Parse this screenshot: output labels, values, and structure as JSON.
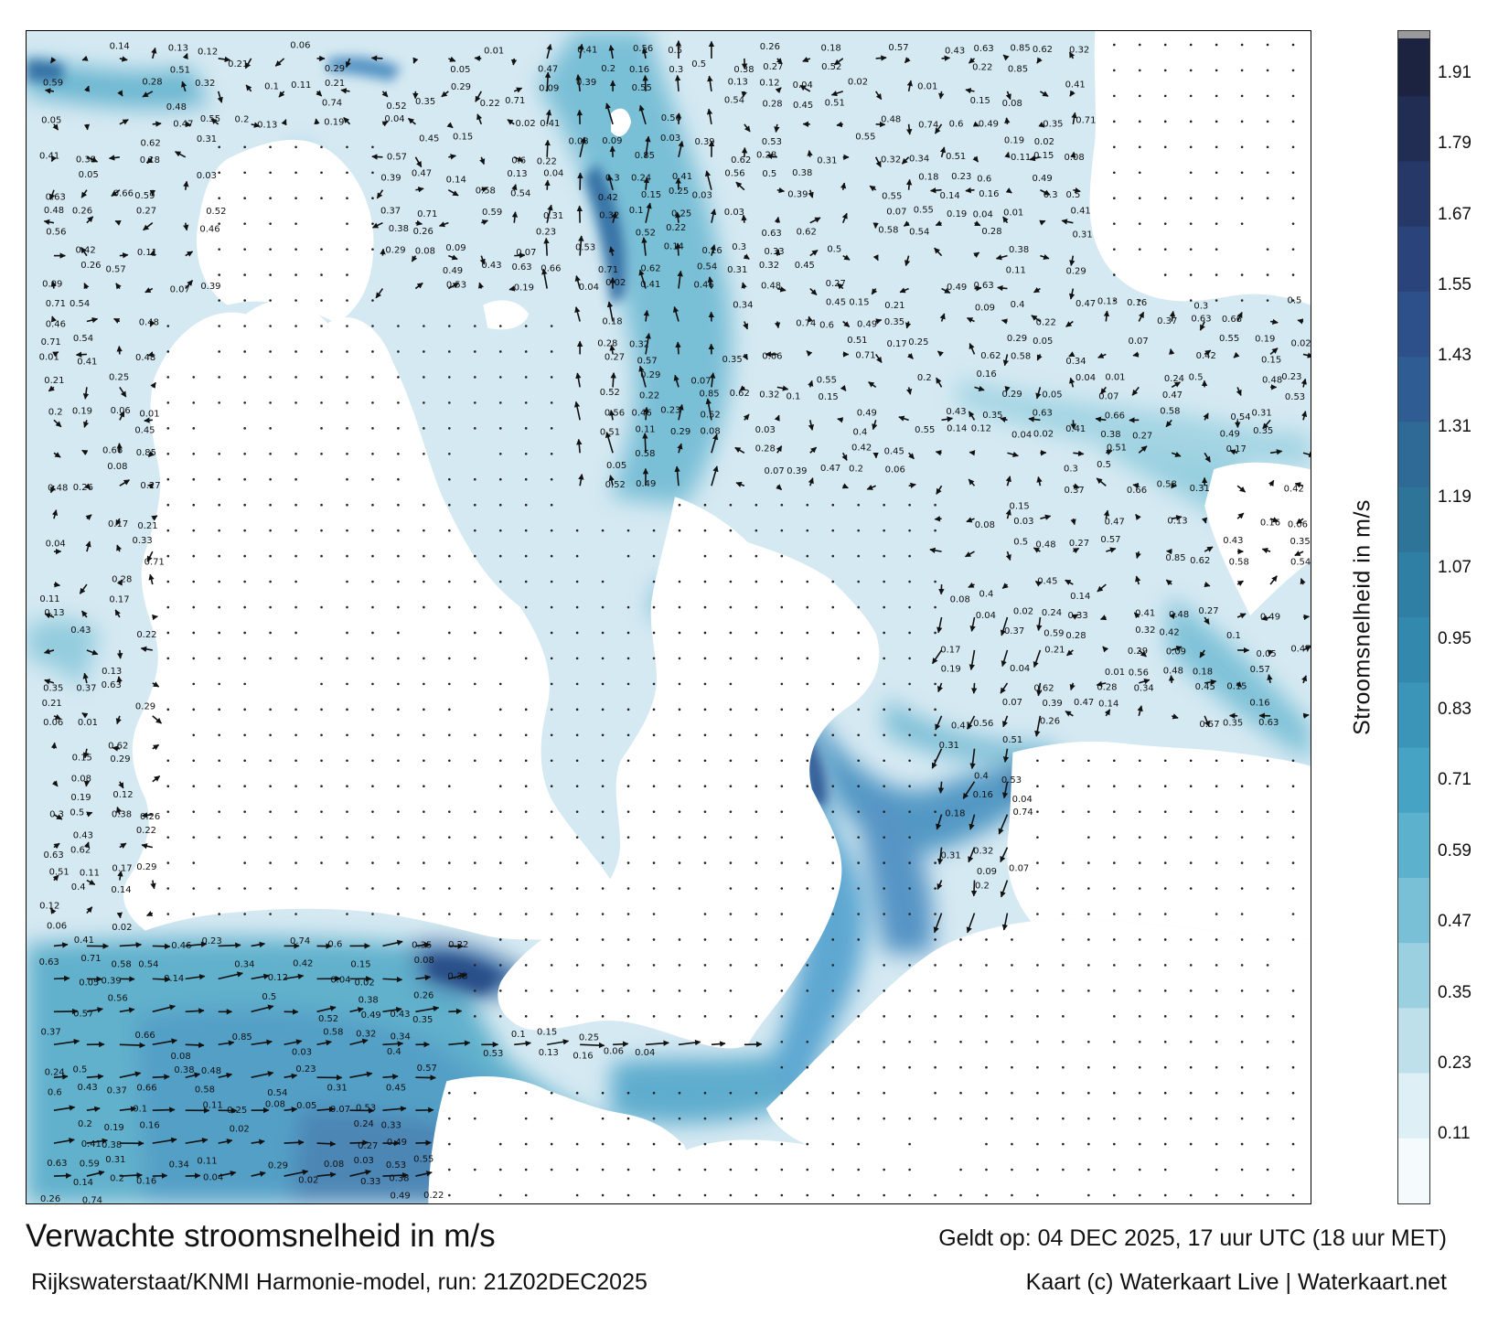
{
  "map": {
    "title": "Verwachte stroomsnelheid in m/s",
    "model_run": "Rijkswaterstaat/KNMI Harmonie-model, run: 21Z02DEC2025",
    "valid_time": "Geldt op: 04 DEC 2025, 17 uur UTC (18 uur MET)",
    "credit": "Kaart (c) Waterkaart Live | Waterkaart.net",
    "region": "North Sea / English Channel tidal currents",
    "water_color_light": "#dcecf4",
    "water_color_mid": "#5fb1cc",
    "water_color_dark": "#2b5c93",
    "land_color": "#ffffff"
  },
  "colorbar": {
    "label": "Stroomsnelheid in m/s",
    "ticks": [
      "1.91",
      "1.79",
      "1.67",
      "1.55",
      "1.43",
      "1.31",
      "1.19",
      "1.07",
      "0.95",
      "0.83",
      "0.71",
      "0.59",
      "0.47",
      "0.35",
      "0.23",
      "0.11"
    ],
    "colors": [
      "#1c2340",
      "#222d54",
      "#263868",
      "#2a437a",
      "#2d4f8a",
      "#2f5c92",
      "#2f6995",
      "#2e7499",
      "#2f7ea3",
      "#3388ad",
      "#3a95b8",
      "#46a3c3",
      "#5cb1cd",
      "#79c0d6",
      "#9ad0e0",
      "#bde0ea",
      "#def0f5",
      "#f5fbfd"
    ]
  },
  "labels": [
    {
      "t": "0.14"
    },
    {
      "t": "0.2"
    },
    {
      "t": "0.13"
    },
    {
      "t": "0.19"
    },
    {
      "t": "0.12"
    },
    {
      "t": "0.16"
    },
    {
      "t": "0.06"
    },
    {
      "t": "0.04"
    },
    {
      "t": "0.02"
    },
    {
      "t": "0.01"
    },
    {
      "t": "0.3"
    },
    {
      "t": "0.24"
    },
    {
      "t": "0.33"
    },
    {
      "t": "0.41"
    },
    {
      "t": "0.56"
    },
    {
      "t": "0.5"
    },
    {
      "t": "0.46"
    },
    {
      "t": "0.38"
    },
    {
      "t": "0.48"
    },
    {
      "t": "0.26"
    },
    {
      "t": "0.18"
    },
    {
      "t": "0.23"
    },
    {
      "t": "0.27"
    },
    {
      "t": "0.74"
    },
    {
      "t": "0.57"
    },
    {
      "t": "0.6"
    },
    {
      "t": "0.52"
    },
    {
      "t": "0.49"
    },
    {
      "t": "0.43"
    },
    {
      "t": "0.35"
    },
    {
      "t": "0.22"
    },
    {
      "t": "0.37"
    },
    {
      "t": "0.63"
    },
    {
      "t": "0.66"
    },
    {
      "t": "0.71"
    },
    {
      "t": "0.85"
    },
    {
      "t": "0.59"
    },
    {
      "t": "0.62"
    },
    {
      "t": "0.58"
    },
    {
      "t": "0.54"
    },
    {
      "t": "0.28"
    },
    {
      "t": "0.31"
    },
    {
      "t": "0.32"
    },
    {
      "t": "0.34"
    },
    {
      "t": "0.42"
    },
    {
      "t": "0.45"
    },
    {
      "t": "0.51"
    },
    {
      "t": "0.1"
    },
    {
      "t": "0.11"
    },
    {
      "t": "0.15"
    },
    {
      "t": "0.17"
    },
    {
      "t": "0.21"
    },
    {
      "t": "0.25"
    },
    {
      "t": "0.29"
    },
    {
      "t": "0.08"
    },
    {
      "t": "0.09"
    },
    {
      "t": "0.05"
    },
    {
      "t": "0.03"
    },
    {
      "t": "0.07"
    },
    {
      "t": "0.4"
    },
    {
      "t": "0.39"
    },
    {
      "t": "0.47"
    },
    {
      "t": "0.53"
    },
    {
      "t": "0.55"
    }
  ]
}
